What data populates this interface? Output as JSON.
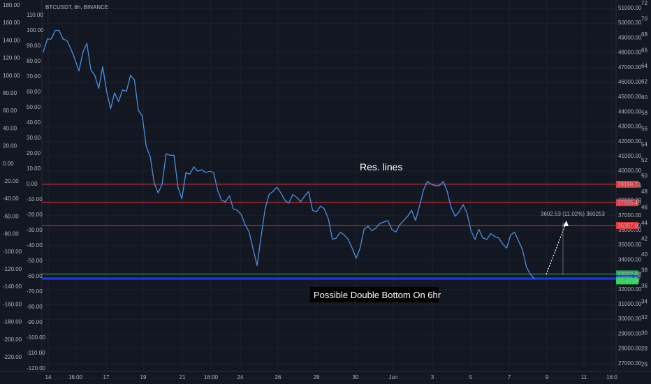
{
  "symbol_label": "BTCUSDT, 6h, BINANCE",
  "colors": {
    "background": "#131722",
    "price_line": "#4a90e2",
    "resistance": "#e0383e",
    "support_blue": "#1e3cf0",
    "support_green": "#26a65b",
    "price_badge": "#21d74f",
    "text": "#b2b5be"
  },
  "chart_data": {
    "type": "line",
    "title": "BTCUSDT, 6h, BINANCE",
    "x_ticks": [
      "14",
      "16:00",
      "17",
      "19",
      "21",
      "16:00",
      "24",
      "26",
      "28",
      "30",
      "Jun",
      "3",
      "5",
      "7",
      "9",
      "11",
      "16:0"
    ],
    "left_axis_ticks": [
      "180.00",
      "160.00",
      "140.00",
      "120.00",
      "100.00",
      "80.00",
      "60.00",
      "40.00",
      "20.00",
      "0.00",
      "-20.00",
      "-40.00",
      "-60.00",
      "-80.00",
      "-100.00",
      "-120.00",
      "-140.00",
      "-160.00",
      "-180.00",
      "-200.00",
      "-220.00"
    ],
    "left_axis_ticks_2": [
      "110.00",
      "100.00",
      "90.00",
      "80.00",
      "70.00",
      "60.00",
      "50.00",
      "40.00",
      "30.00",
      "20.00",
      "10.00",
      "0.00",
      "-10.00",
      "-20.00",
      "-30.00",
      "-40.00",
      "-50.00",
      "-60.00",
      "-70.00",
      "-80.00",
      "-90.00",
      "-100.00",
      "-110.00",
      "-120.00"
    ],
    "right_axis_ticks": [
      "51000.00",
      "50000.00",
      "49000.00",
      "48000.00",
      "47000.00",
      "46000.00",
      "45000.00",
      "44000.00",
      "43000.00",
      "42000.00",
      "41000.00",
      "40000.00",
      "39000.00",
      "38000.00",
      "37000.00",
      "36000.00",
      "35000.00",
      "34000.00",
      "33000.00",
      "32000.00",
      "31000.00",
      "30000.00",
      "29000.00",
      "28000.00",
      "27000.00"
    ],
    "right_axis_ticks_2": [
      "72",
      "70",
      "68",
      "66",
      "64",
      "62",
      "60",
      "58",
      "56",
      "54",
      "52",
      "50",
      "48",
      "46",
      "44",
      "42",
      "40",
      "38",
      "36",
      "34",
      "32",
      "30",
      "28",
      "26"
    ],
    "ylim": [
      26500,
      51700
    ],
    "series": [
      {
        "values": [
          48300,
          49200,
          49200,
          49800,
          49800,
          49200,
          49100,
          48500,
          47800,
          47000,
          48300,
          48900,
          47100,
          46700,
          45800,
          47300,
          45600,
          44400,
          45500,
          44900,
          45700,
          45600,
          46700,
          46400,
          44300,
          43900,
          41800,
          41100,
          39300,
          38600,
          39200,
          41300,
          41200,
          41200,
          39000,
          38200,
          40000,
          39900,
          40400,
          40100,
          40200,
          40000,
          40100,
          40000,
          38800,
          38100,
          38000,
          38400,
          37500,
          37400,
          37100,
          36400,
          35900,
          34700,
          33600,
          35600,
          37500,
          38500,
          38700,
          39000,
          38600,
          38100,
          37900,
          38500,
          38300,
          38000,
          38400,
          38700,
          37400,
          37300,
          37700,
          37500,
          36800,
          35400,
          35500,
          35900,
          35700,
          35400,
          34800,
          34100,
          34800,
          36100,
          36300,
          36000,
          36200,
          36500,
          36600,
          36700,
          36100,
          35900,
          36400,
          36700,
          37000,
          37400,
          36700,
          37700,
          38800,
          39400,
          39200,
          39100,
          39100,
          39400,
          38700,
          37600,
          37000,
          37300,
          37800,
          37200,
          36000,
          35400,
          36100,
          35500,
          35400,
          35800,
          35600,
          35500,
          35100,
          34800,
          35700,
          35900,
          35300,
          34700,
          33500,
          33000,
          32700
        ]
      }
    ],
    "horizontal_levels": [
      {
        "value": 39199.71,
        "label": "39199.71",
        "color": "#e0383e"
      },
      {
        "value": 37935.46,
        "label": "37935.46",
        "color": "#e0383e"
      },
      {
        "value": 36357.09,
        "label": "36357.09",
        "color": "#e0383e"
      },
      {
        "value": 33022.87,
        "label": "33022.87",
        "color": "#26a65b"
      },
      {
        "value": 32701.37,
        "label": "32701.37",
        "color": "#1e3cf0"
      }
    ],
    "countdown_label": "01:47:04",
    "measure_label": "3602.53 (11.02%) 360253",
    "annotations": {
      "res": "Res. lines",
      "double_bottom": "Possible Double Bottom On 6hr"
    },
    "grid": true
  }
}
